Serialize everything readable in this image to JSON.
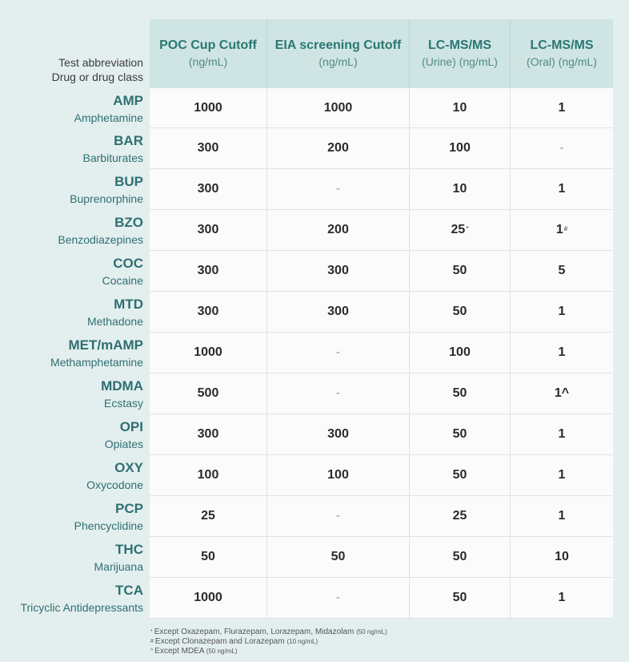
{
  "header": {
    "row_label_line1": "Test abbreviation",
    "row_label_line2": "Drug or drug class",
    "columns": [
      {
        "title": "POC Cup Cutoff",
        "sub": "(ng/mL)"
      },
      {
        "title": "EIA screening Cutoff",
        "sub": "(ng/mL)"
      },
      {
        "title": "LC-MS/MS",
        "sub": "(Urine) (ng/mL)"
      },
      {
        "title": "LC-MS/MS",
        "sub": "(Oral) (ng/mL)"
      }
    ]
  },
  "rows": [
    {
      "abbr": "AMP",
      "name": "Amphetamine",
      "poc": "1000",
      "eia": "1000",
      "urine": "10",
      "urine_mark": "",
      "oral": "1",
      "oral_mark": ""
    },
    {
      "abbr": "BAR",
      "name": "Barbiturates",
      "poc": "300",
      "eia": "200",
      "urine": "100",
      "urine_mark": "",
      "oral": "-",
      "oral_mark": ""
    },
    {
      "abbr": "BUP",
      "name": "Buprenorphine",
      "poc": "300",
      "eia": "-",
      "urine": "10",
      "urine_mark": "",
      "oral": "1",
      "oral_mark": ""
    },
    {
      "abbr": "BZO",
      "name": "Benzodiazepines",
      "poc": "300",
      "eia": "200",
      "urine": "25",
      "urine_mark": "*",
      "oral": "1",
      "oral_mark": "#"
    },
    {
      "abbr": "COC",
      "name": "Cocaine",
      "poc": "300",
      "eia": "300",
      "urine": "50",
      "urine_mark": "",
      "oral": "5",
      "oral_mark": ""
    },
    {
      "abbr": "MTD",
      "name": "Methadone",
      "poc": "300",
      "eia": "300",
      "urine": "50",
      "urine_mark": "",
      "oral": "1",
      "oral_mark": ""
    },
    {
      "abbr": "MET/mAMP",
      "name": "Methamphetamine",
      "poc": "1000",
      "eia": "-",
      "urine": "100",
      "urine_mark": "",
      "oral": "1",
      "oral_mark": ""
    },
    {
      "abbr": "MDMA",
      "name": "Ecstasy",
      "poc": "500",
      "eia": "-",
      "urine": "50",
      "urine_mark": "",
      "oral": "1^",
      "oral_mark": ""
    },
    {
      "abbr": "OPI",
      "name": "Opiates",
      "poc": "300",
      "eia": "300",
      "urine": "50",
      "urine_mark": "",
      "oral": "1",
      "oral_mark": ""
    },
    {
      "abbr": "OXY",
      "name": "Oxycodone",
      "poc": "100",
      "eia": "100",
      "urine": "50",
      "urine_mark": "",
      "oral": "1",
      "oral_mark": ""
    },
    {
      "abbr": "PCP",
      "name": "Phencyclidine",
      "poc": "25",
      "eia": "-",
      "urine": "25",
      "urine_mark": "",
      "oral": "1",
      "oral_mark": ""
    },
    {
      "abbr": "THC",
      "name": "Marijuana",
      "poc": "50",
      "eia": "50",
      "urine": "50",
      "urine_mark": "",
      "oral": "10",
      "oral_mark": ""
    },
    {
      "abbr": "TCA",
      "name": "Tricyclic Antidepressants",
      "poc": "1000",
      "eia": "-",
      "urine": "50",
      "urine_mark": "",
      "oral": "1",
      "oral_mark": ""
    }
  ],
  "footnotes": [
    {
      "mark": "*",
      "text": "Except Oxazepam, Flurazepam, Lorazepam, Midazolam",
      "small": "(50 ng/mL)"
    },
    {
      "mark": "#",
      "text": "Except Clonazepam and Lorazepam",
      "small": "(10 ng/mL)"
    },
    {
      "mark": "^",
      "text": "Except MDEA",
      "small": "(50 ng/mL)"
    }
  ],
  "colors": {
    "background": "#e3efee",
    "header_bg": "#cfe5e3",
    "accent": "#2f6f72"
  }
}
